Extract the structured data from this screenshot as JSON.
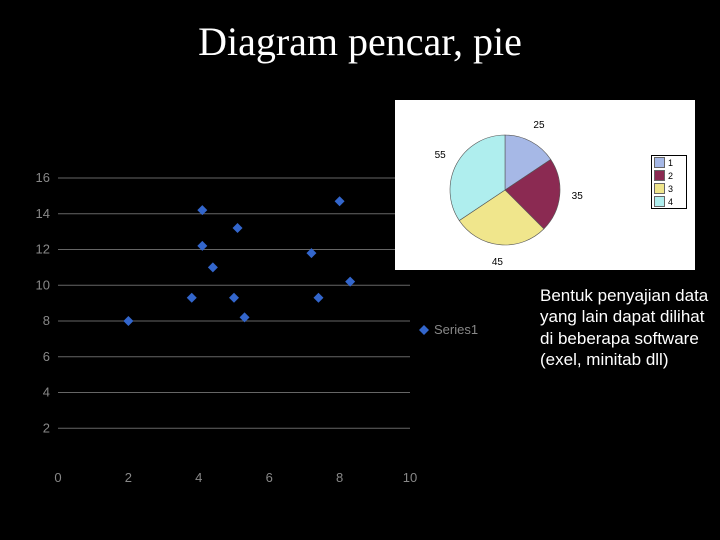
{
  "title": "Diagram pencar, pie",
  "body_text": "Bentuk penyajian data yang lain dapat dilihat di beberapa software (exel, minitab dll)",
  "scatter": {
    "type": "scatter",
    "series_label": "Series1",
    "xlim": [
      0,
      10
    ],
    "ylim": [
      0,
      16
    ],
    "xticks": [
      0,
      2,
      4,
      6,
      8,
      10
    ],
    "yticks": [
      2,
      4,
      6,
      8,
      10,
      12,
      14,
      16
    ],
    "grid_color": "#666666",
    "label_color": "#888888",
    "marker_color": "#3366cc",
    "marker_size": 5,
    "points": [
      [
        2,
        8
      ],
      [
        3.8,
        9.3
      ],
      [
        4.1,
        12.2
      ],
      [
        4.1,
        14.2
      ],
      [
        4.4,
        11
      ],
      [
        5,
        9.3
      ],
      [
        5.1,
        13.2
      ],
      [
        5.3,
        8.2
      ],
      [
        7.2,
        11.8
      ],
      [
        7.4,
        9.3
      ],
      [
        8,
        14.7
      ],
      [
        8.3,
        10.2
      ]
    ]
  },
  "pie": {
    "type": "pie",
    "background": "#ffffff",
    "slices": [
      {
        "label": "1",
        "value": 25,
        "color": "#a6b8e6"
      },
      {
        "label": "2",
        "value": 35,
        "color": "#8b2a52"
      },
      {
        "label": "3",
        "value": 45,
        "color": "#f0e68c"
      },
      {
        "label": "4",
        "value": 55,
        "color": "#afeeee"
      }
    ],
    "legend_border": "#000000",
    "value_labels": [
      "25",
      "35",
      "45",
      "55"
    ]
  }
}
